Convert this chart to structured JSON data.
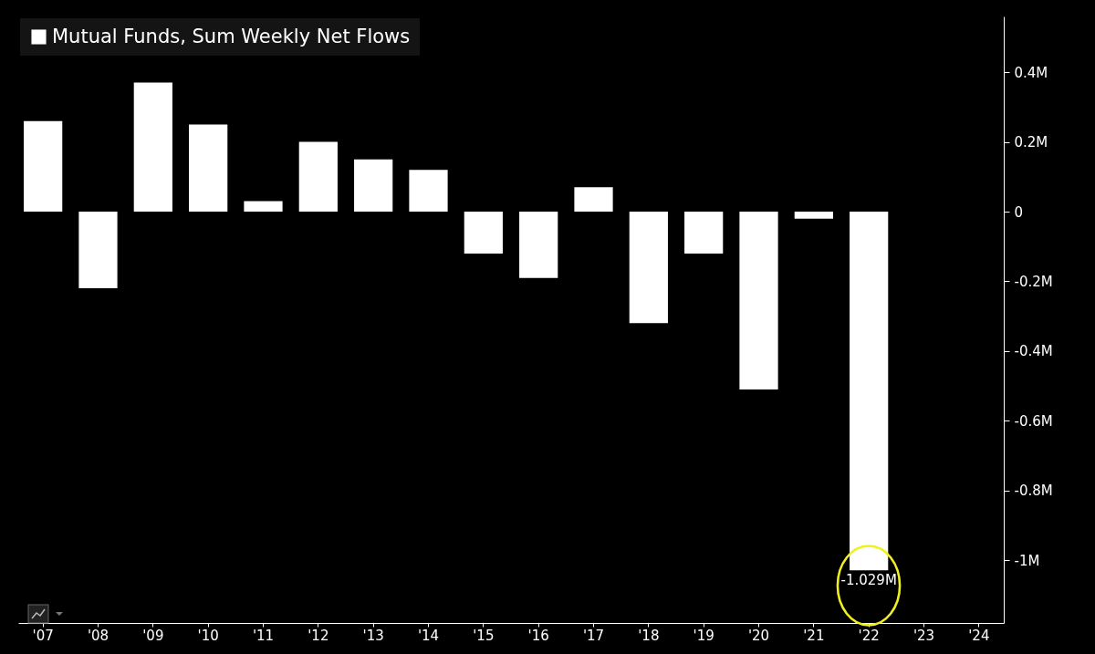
{
  "chart_data": {
    "type": "bar",
    "categories": [
      "'07",
      "'08",
      "'09",
      "'10",
      "'11",
      "'12",
      "'13",
      "'14",
      "'15",
      "'16",
      "'17",
      "'18",
      "'19",
      "'20",
      "'21",
      "'22",
      "'23",
      "'24"
    ],
    "series": [
      {
        "name": "Mutual Funds, Sum Weekly Net Flows",
        "color": "#ffffff",
        "values": [
          0.26,
          -0.22,
          0.37,
          0.25,
          0.03,
          0.2,
          0.15,
          0.12,
          -0.12,
          -0.19,
          0.07,
          -0.32,
          -0.12,
          -0.51,
          -0.02,
          -1.029,
          null,
          null
        ],
        "value_labels": [
          null,
          null,
          null,
          null,
          null,
          null,
          null,
          null,
          null,
          null,
          null,
          null,
          null,
          null,
          null,
          "-1.029M",
          null,
          null
        ]
      }
    ],
    "ylim": [
      -1.18,
      0.56
    ],
    "yticks": [
      {
        "value": 0.4,
        "label": "0.4M"
      },
      {
        "value": 0.2,
        "label": "0.2M"
      },
      0,
      {
        "value": -0.2,
        "label": "-0.2M"
      },
      {
        "value": -0.4,
        "label": "-0.4M"
      },
      {
        "value": -0.6,
        "label": "-0.6M"
      },
      {
        "value": -0.8,
        "label": "-0.8M"
      },
      {
        "value": -1,
        "label": "-1M"
      }
    ],
    "grid": false,
    "legend": "top left"
  }
}
